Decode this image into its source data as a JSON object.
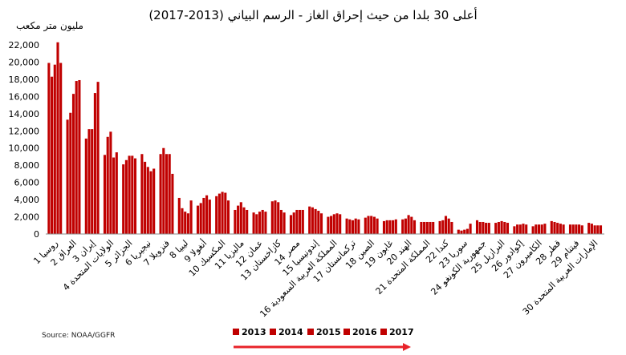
{
  "chart_data": {
    "type": "bar",
    "title": "أعلى 30 بلدا من حيث إحراق الغاز - الرسم البياني (2013-2017)",
    "ylabel": "مليون متر مكعب",
    "source": "Source: NOAA/GGFR",
    "ylim": [
      0,
      22000
    ],
    "yticks": [
      "0",
      "2,000",
      "4,000",
      "6,000",
      "8,000",
      "10,000",
      "12,000",
      "14,000",
      "16,000",
      "18,000",
      "20,000",
      "22,000"
    ],
    "ytick_values": [
      0,
      2000,
      4000,
      6000,
      8000,
      10000,
      12000,
      14000,
      16000,
      18000,
      20000,
      22000
    ],
    "bar_color": "#c00000",
    "arrow_color": "#e8232a",
    "legend_placement": "bottom",
    "series_names": [
      "2013",
      "2014",
      "2015",
      "2016",
      "2017"
    ],
    "categories": [
      "1 روسيا",
      "2 العراق",
      "3 إيران",
      "4 الولايات المتحدة",
      "5 الجزائر",
      "6 نيجيريا",
      "7 فنزويلا",
      "8 ليبيا",
      "9 أنغولا",
      "10 المكسيك",
      "11 ماليزيا",
      "12 عمان",
      "13 كازاخستان",
      "14 مصر",
      "15 إندونيسيا",
      "16 المملكة العربية السعودية",
      "17 تركمانستان",
      "18 الصين",
      "19 غابون",
      "20 الهند",
      "21 المملكة المتحدة",
      "22 كندا",
      "23 سوريا",
      "24 جمهورية الكونغو",
      "25 البرازيل",
      "26 إكوادور",
      "27 الكاميرون",
      "28 قطر",
      "29 فيتنام",
      "30 الإمارات العربية المتحدة"
    ],
    "values": [
      [
        19900,
        18300,
        19700,
        22300,
        19900
      ],
      [
        13300,
        14100,
        16300,
        17800,
        17900
      ],
      [
        11100,
        12200,
        12200,
        16400,
        17700
      ],
      [
        9200,
        11300,
        11900,
        8900,
        9500
      ],
      [
        8100,
        8600,
        9100,
        9100,
        8800
      ],
      [
        9300,
        8400,
        7800,
        7300,
        7600
      ],
      [
        9300,
        10000,
        9300,
        9300,
        7000
      ],
      [
        4200,
        3000,
        2600,
        2400,
        3900
      ],
      [
        3300,
        3600,
        4200,
        4500,
        4000
      ],
      [
        4400,
        4700,
        4900,
        4800,
        3900
      ],
      [
        2800,
        3300,
        3700,
        3100,
        2800
      ],
      [
        2500,
        2300,
        2600,
        2800,
        2600
      ],
      [
        3800,
        3900,
        3700,
        2800,
        2500
      ],
      [
        2200,
        2500,
        2800,
        2800,
        2800
      ],
      [
        3200,
        3100,
        2900,
        2700,
        2400
      ],
      [
        2000,
        2100,
        2300,
        2400,
        2300
      ],
      [
        1800,
        1700,
        1600,
        1800,
        1700
      ],
      [
        1900,
        2100,
        2100,
        2000,
        1800
      ],
      [
        1500,
        1600,
        1600,
        1600,
        1700
      ],
      [
        1700,
        1800,
        2200,
        2000,
        1600
      ],
      [
        1400,
        1400,
        1400,
        1400,
        1400
      ],
      [
        1500,
        1600,
        2100,
        1800,
        1400
      ],
      [
        500,
        400,
        500,
        600,
        1200
      ],
      [
        1600,
        1400,
        1400,
        1300,
        1300
      ],
      [
        1300,
        1400,
        1500,
        1400,
        1300
      ],
      [
        900,
        1100,
        1100,
        1200,
        1100
      ],
      [
        900,
        1100,
        1100,
        1100,
        1200
      ],
      [
        1500,
        1400,
        1300,
        1200,
        1100
      ],
      [
        1100,
        1100,
        1100,
        1100,
        1000
      ],
      [
        1300,
        1200,
        1000,
        1000,
        1000
      ]
    ]
  }
}
